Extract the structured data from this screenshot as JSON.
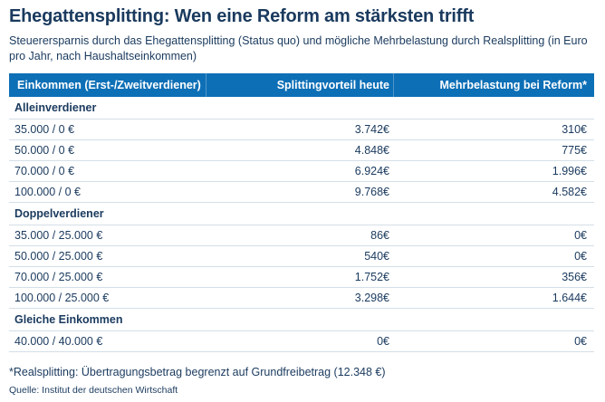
{
  "chart_data": {
    "type": "table",
    "title": "Ehegattensplitting: Wen eine Reform am stärksten trifft",
    "subtitle": "Steuerersparnis durch das Ehegattensplitting (Status quo) und mögliche Mehrbelastung durch Realsplitting (in Euro pro Jahr, nach Haushaltseinkommen)",
    "columns": [
      "Einkommen (Erst-/Zweitverdiener)",
      "Splittingvorteil heute",
      "Mehrbelastung bei Reform*"
    ],
    "sections": [
      {
        "label": "Alleinverdiener",
        "rows": [
          [
            "35.000 / 0 €",
            "3.742€",
            "310€"
          ],
          [
            "50.000 / 0 €",
            "4.848€",
            "775€"
          ],
          [
            "70.000 / 0 €",
            "6.924€",
            "1.996€"
          ],
          [
            "100.000 / 0 €",
            "9.768€",
            "4.582€"
          ]
        ]
      },
      {
        "label": "Doppelverdiener",
        "rows": [
          [
            "35.000 / 25.000 €",
            "86€",
            "0€"
          ],
          [
            "50.000 / 25.000 €",
            "540€",
            "0€"
          ],
          [
            "70.000 / 25.000 €",
            "1.752€",
            "356€"
          ],
          [
            "100.000 / 25.000 €",
            "3.298€",
            "1.644€"
          ]
        ]
      },
      {
        "label": "Gleiche Einkommen",
        "rows": [
          [
            "40.000 / 40.000 €",
            "0€",
            "0€"
          ]
        ]
      }
    ],
    "footnote": "*Realsplitting: Übertragungsbetrag begrenzt auf Grundfreibetrag (12.348 €)",
    "source": "Quelle: Institut der deutschen Wirtschaft",
    "colors": {
      "header_bg": "#0d6fb6",
      "text": "#1a3a5e",
      "separator": "#d4dfe8",
      "background": "#ffffff"
    }
  }
}
